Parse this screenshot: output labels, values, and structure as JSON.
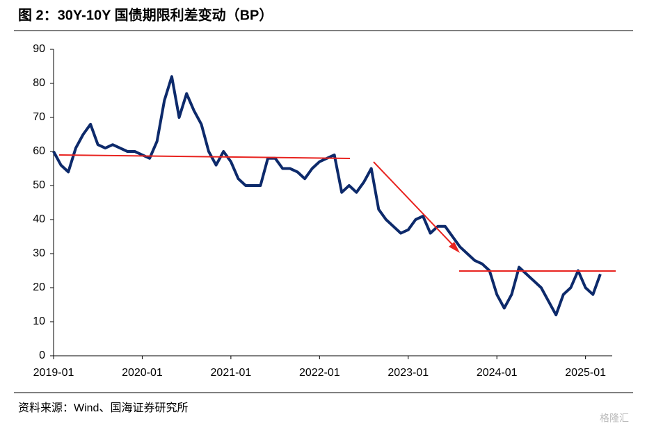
{
  "chart_data": {
    "type": "line",
    "title": "图 2：30Y-10Y 国债期限利差变动（BP）",
    "source": "资料来源：Wind、国海证券研究所",
    "watermark": "格隆汇",
    "x": [
      "2019-01",
      "2019-02",
      "2019-03",
      "2019-04",
      "2019-05",
      "2019-06",
      "2019-07",
      "2019-08",
      "2019-09",
      "2019-10",
      "2019-11",
      "2019-12",
      "2020-01",
      "2020-02",
      "2020-03",
      "2020-04",
      "2020-05",
      "2020-06",
      "2020-07",
      "2020-08",
      "2020-09",
      "2020-10",
      "2020-11",
      "2020-12",
      "2021-01",
      "2021-02",
      "2021-03",
      "2021-04",
      "2021-05",
      "2021-06",
      "2021-07",
      "2021-08",
      "2021-09",
      "2021-10",
      "2021-11",
      "2021-12",
      "2022-01",
      "2022-02",
      "2022-03",
      "2022-04",
      "2022-05",
      "2022-06",
      "2022-07",
      "2022-08",
      "2022-09",
      "2022-10",
      "2022-11",
      "2022-12",
      "2023-01",
      "2023-02",
      "2023-03",
      "2023-04",
      "2023-05",
      "2023-06",
      "2023-07",
      "2023-08",
      "2023-09",
      "2023-10",
      "2023-11",
      "2023-12",
      "2024-01",
      "2024-02",
      "2024-03",
      "2024-04",
      "2024-05",
      "2024-06",
      "2024-07",
      "2024-08",
      "2024-09",
      "2024-10",
      "2024-11",
      "2024-12",
      "2025-01",
      "2025-02",
      "2025-03"
    ],
    "series": [
      {
        "color": "#0d2a6b",
        "values": [
          60,
          56,
          54,
          61,
          65,
          68,
          62,
          61,
          62,
          61,
          60,
          60,
          59,
          58,
          63,
          75,
          82,
          70,
          77,
          72,
          68,
          60,
          56,
          60,
          57,
          52,
          50,
          50,
          50,
          58,
          58,
          55,
          55,
          54,
          52,
          55,
          57,
          58,
          59,
          48,
          50,
          48,
          51,
          55,
          43,
          40,
          38,
          36,
          37,
          40,
          41,
          36,
          38,
          38,
          35,
          32,
          30,
          28,
          27,
          25,
          18,
          14,
          18,
          26,
          24,
          22,
          20,
          16,
          12,
          18,
          20,
          25,
          20,
          18,
          24
        ]
      }
    ],
    "xticks": [
      "2019-01",
      "2020-01",
      "2021-01",
      "2022-01",
      "2023-01",
      "2024-01",
      "2025-01"
    ],
    "ylim": [
      0,
      90
    ],
    "yticks": [
      0,
      10,
      20,
      30,
      40,
      50,
      60,
      70,
      80,
      90
    ],
    "grid": false
  }
}
